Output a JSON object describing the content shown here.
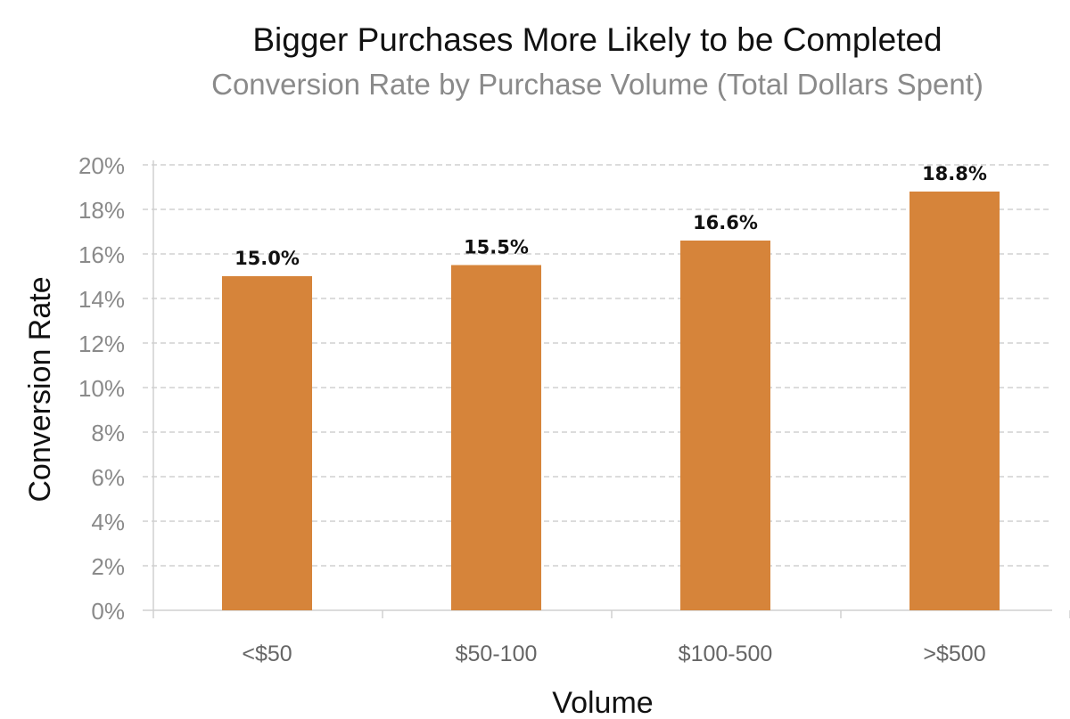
{
  "chart_data": {
    "type": "bar",
    "title": "Bigger Purchases More Likely to be Completed",
    "subtitle": "Conversion Rate by Purchase Volume (Total Dollars Spent)",
    "xlabel": "Volume",
    "ylabel": "Conversion Rate",
    "categories": [
      "<$50",
      "$50-100",
      "$100-500",
      ">$500"
    ],
    "values": [
      15.0,
      15.5,
      16.6,
      18.8
    ],
    "data_labels": [
      "15.0%",
      "15.5%",
      "16.6%",
      "18.8%"
    ],
    "ylim": [
      0,
      20
    ],
    "yticks": [
      "0%",
      "2%",
      "4%",
      "6%",
      "8%",
      "10%",
      "12%",
      "14%",
      "16%",
      "18%",
      "20%"
    ],
    "grid": "horizontal dashed",
    "legend": "none",
    "bar_color": "#D6843A"
  }
}
